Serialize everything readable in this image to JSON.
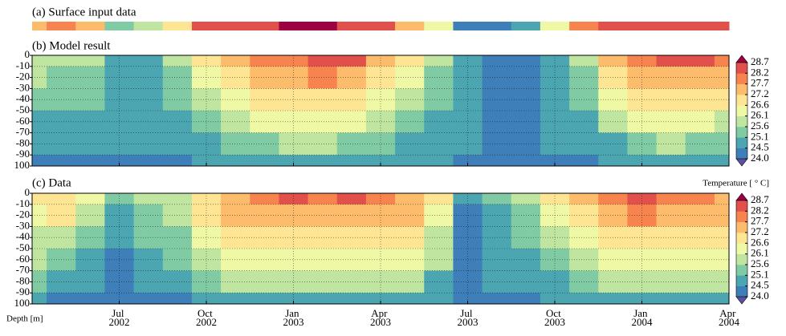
{
  "chart_data": {
    "type": "contourf",
    "surface": {
      "title": "(a) Surface input data",
      "values": [
        27.5,
        28.0,
        27.2,
        25.2,
        25.8,
        26.8,
        28.2,
        28.5,
        28.6,
        28.7,
        28.7,
        28.6,
        28.2,
        27.5,
        26.2,
        24.2,
        24.1,
        24.5,
        26.5,
        27.8,
        28.3,
        28.5,
        28.6,
        28.4,
        28.2
      ]
    },
    "x": [
      "2002-04",
      "2002-05",
      "2002-06",
      "2002-07",
      "2002-08",
      "2002-09",
      "2002-10",
      "2002-11",
      "2002-12",
      "2003-01",
      "2003-02",
      "2003-03",
      "2003-04",
      "2003-05",
      "2003-06",
      "2003-07",
      "2003-08",
      "2003-09",
      "2003-10",
      "2003-11",
      "2003-12",
      "2004-01",
      "2004-02",
      "2004-03",
      "2004-04"
    ],
    "depths": [
      0,
      -20,
      -40,
      -60,
      -80,
      -100
    ],
    "panels": [
      {
        "title": "(b) Model result",
        "values": [
          [
            26.0,
            25.8,
            25.6,
            24.9,
            24.9,
            25.8,
            26.8,
            27.3,
            27.7,
            28.0,
            28.6,
            28.2,
            27.5,
            26.8,
            25.8,
            24.8,
            24.2,
            24.3,
            25.0,
            25.8,
            27.2,
            27.8,
            28.2,
            28.4,
            27.8
          ],
          [
            25.6,
            25.5,
            25.4,
            24.9,
            24.9,
            25.5,
            26.4,
            27.0,
            27.3,
            27.5,
            27.8,
            27.6,
            27.0,
            26.4,
            25.5,
            24.7,
            24.2,
            24.3,
            24.9,
            25.5,
            26.8,
            27.3,
            27.6,
            27.6,
            27.3
          ],
          [
            25.3,
            25.2,
            25.2,
            24.8,
            24.8,
            25.2,
            25.9,
            26.5,
            26.8,
            27.0,
            27.1,
            26.9,
            26.5,
            26.0,
            25.2,
            24.7,
            24.2,
            24.2,
            24.8,
            25.2,
            26.3,
            26.8,
            27.0,
            26.9,
            26.7
          ],
          [
            25.0,
            25.0,
            24.9,
            24.8,
            24.7,
            24.9,
            25.5,
            25.9,
            26.2,
            26.4,
            26.4,
            26.2,
            25.9,
            25.5,
            25.0,
            24.6,
            24.2,
            24.2,
            24.7,
            24.9,
            25.7,
            26.1,
            26.3,
            26.2,
            26.0
          ],
          [
            24.7,
            24.7,
            24.7,
            24.6,
            24.6,
            24.7,
            25.0,
            25.3,
            25.5,
            25.7,
            25.6,
            25.5,
            25.3,
            25.0,
            24.8,
            24.5,
            24.1,
            24.2,
            24.5,
            24.7,
            25.0,
            25.4,
            25.6,
            25.5,
            25.3
          ],
          [
            24.4,
            24.4,
            24.4,
            24.4,
            24.4,
            24.4,
            24.5,
            24.6,
            24.7,
            24.8,
            24.8,
            24.7,
            24.6,
            24.5,
            24.5,
            24.3,
            24.1,
            24.1,
            24.3,
            24.4,
            24.5,
            24.6,
            24.7,
            24.7,
            24.6
          ]
        ]
      },
      {
        "title": "(c) Data",
        "values": [
          [
            26.8,
            27.0,
            26.5,
            25.5,
            25.6,
            26.0,
            27.0,
            27.6,
            28.0,
            28.2,
            28.0,
            28.3,
            28.0,
            27.6,
            26.8,
            24.5,
            25.3,
            25.8,
            26.6,
            27.4,
            27.9,
            28.3,
            28.0,
            27.8,
            27.5
          ],
          [
            26.5,
            26.6,
            26.0,
            25.0,
            25.4,
            25.8,
            26.8,
            27.3,
            27.6,
            27.6,
            27.4,
            27.6,
            27.4,
            27.2,
            26.4,
            24.3,
            25.0,
            25.5,
            26.3,
            27.0,
            27.5,
            27.7,
            27.5,
            27.4,
            27.2
          ],
          [
            26.0,
            26.0,
            25.4,
            24.6,
            25.1,
            25.5,
            26.3,
            26.8,
            27.0,
            26.9,
            26.8,
            26.9,
            26.9,
            26.7,
            26.0,
            24.2,
            24.8,
            25.2,
            25.9,
            26.5,
            27.0,
            27.0,
            26.9,
            26.8,
            26.7
          ],
          [
            25.6,
            25.5,
            24.9,
            24.3,
            24.9,
            25.2,
            25.8,
            26.3,
            26.5,
            26.3,
            26.3,
            26.3,
            26.3,
            26.2,
            25.6,
            24.1,
            24.7,
            24.9,
            25.4,
            26.0,
            26.5,
            26.5,
            26.4,
            26.3,
            26.2
          ],
          [
            25.1,
            25.0,
            24.5,
            24.1,
            24.6,
            24.8,
            25.2,
            25.7,
            25.8,
            25.7,
            25.6,
            25.6,
            25.7,
            25.6,
            25.0,
            24.1,
            24.5,
            24.7,
            24.9,
            25.4,
            25.9,
            25.9,
            25.8,
            25.7,
            25.6
          ],
          [
            24.5,
            24.4,
            24.2,
            24.0,
            24.3,
            24.4,
            24.5,
            24.9,
            25.0,
            24.9,
            24.8,
            24.8,
            24.9,
            24.8,
            24.5,
            24.0,
            24.3,
            24.4,
            24.5,
            24.7,
            25.0,
            25.0,
            24.9,
            24.9,
            24.8
          ]
        ]
      }
    ],
    "xlim": [
      "2002-04",
      "2004-04"
    ],
    "xticks": [
      {
        "value": "2002-07",
        "label": "Jul 2002"
      },
      {
        "value": "2002-10",
        "label": "Oct 2002"
      },
      {
        "value": "2003-01",
        "label": "Jan 2003"
      },
      {
        "value": "2003-04",
        "label": "Apr 2003"
      },
      {
        "value": "2003-07",
        "label": "Jul 2003"
      },
      {
        "value": "2003-10",
        "label": "Oct 2003"
      },
      {
        "value": "2004-01",
        "label": "Jan 2004"
      },
      {
        "value": "2004-04",
        "label": "Apr 2004"
      }
    ],
    "ylim": [
      0,
      -100
    ],
    "yticks": [
      0,
      -10,
      -20,
      -30,
      -40,
      -50,
      -60,
      -70,
      -80,
      -90,
      {
        "value": -100,
        "label": "100"
      }
    ],
    "ylabel": "Depth [m]",
    "grid": true,
    "colorbar": {
      "label": "Temperature [ ° C]",
      "ticks": [
        {
          "value": 24.0,
          "label": "24.0"
        },
        24.5,
        25.1,
        25.6,
        26.1,
        26.6,
        27.2,
        27.7,
        28.2,
        28.7
      ],
      "colors": [
        "#5e4fa2",
        "#3f7fb9",
        "#4ba6b1",
        "#80cba4",
        "#bfe5a0",
        "#eef8a5",
        "#fee594",
        "#fdbb6c",
        "#f7844e",
        "#e1504b",
        "#9e0142"
      ]
    }
  }
}
